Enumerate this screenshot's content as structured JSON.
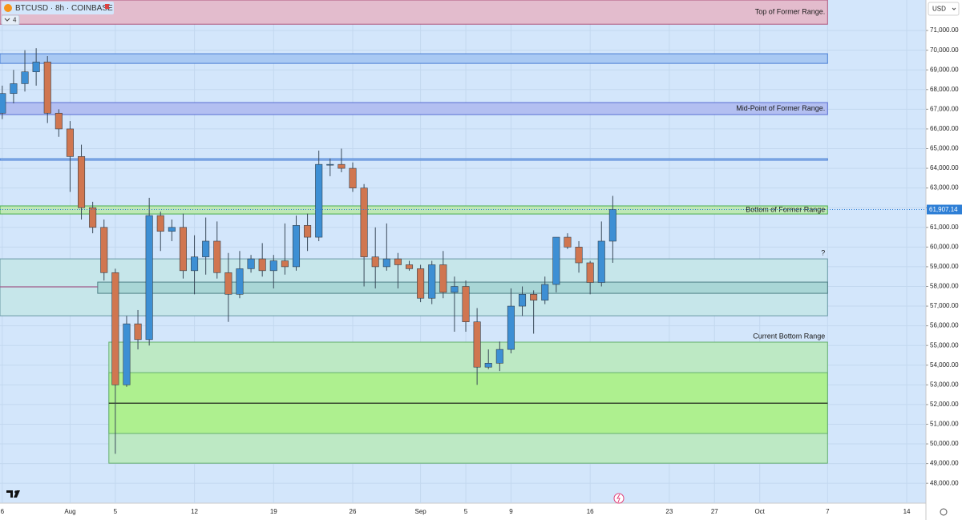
{
  "chart_data": {
    "type": "candlestick",
    "symbol": "BTCUSD · 8h · COINBASE",
    "indicator_count": "4",
    "currency": "USD",
    "x": [
      0,
      1,
      2,
      3,
      4,
      5,
      6,
      7,
      8,
      9,
      10,
      11,
      12,
      13,
      14,
      15,
      16,
      17,
      18,
      19,
      20,
      21,
      22,
      23,
      24,
      25,
      26,
      27,
      28,
      29,
      30,
      31,
      32,
      33,
      34,
      35,
      36,
      37,
      38,
      39,
      40,
      41,
      42,
      43,
      44,
      45,
      46,
      47,
      48,
      49,
      50,
      51,
      52,
      53,
      54
    ],
    "open": [
      66800,
      67800,
      68300,
      68900,
      69400,
      66800,
      66000,
      64600,
      62000,
      61000,
      58700,
      53000,
      56100,
      55300,
      61600,
      60800,
      61000,
      58800,
      59500,
      60300,
      58700,
      57600,
      58900,
      59400,
      58800,
      59300,
      59000,
      61100,
      60500,
      64200,
      64200,
      64000,
      63000,
      59500,
      59000,
      59400,
      59100,
      58900,
      57400,
      59100,
      57700,
      58000,
      56200,
      53900,
      54100,
      54800,
      57000,
      57600,
      57300,
      58100,
      60500,
      60000,
      59200,
      58200,
      60300
    ],
    "high": [
      68200,
      69000,
      70000,
      70100,
      69700,
      67000,
      66400,
      65200,
      62300,
      61400,
      58900,
      56500,
      56800,
      62500,
      61800,
      61400,
      61700,
      60600,
      61500,
      61300,
      59700,
      59800,
      59600,
      60200,
      59600,
      61200,
      61600,
      61700,
      64900,
      64500,
      65000,
      64300,
      63200,
      61000,
      61200,
      59700,
      59300,
      59100,
      59300,
      59800,
      58500,
      58300,
      56900,
      54800,
      55200,
      57900,
      58000,
      57800,
      58500,
      60500,
      60700,
      60300,
      59300,
      61300,
      62600
    ],
    "low": [
      66500,
      67300,
      67900,
      68200,
      66300,
      65600,
      62800,
      61400,
      60700,
      58300,
      49500,
      52900,
      54800,
      55000,
      59800,
      60300,
      58400,
      57600,
      58600,
      58400,
      56200,
      57400,
      58700,
      58500,
      57900,
      58600,
      58800,
      59800,
      60300,
      63600,
      63800,
      62800,
      58000,
      57900,
      58800,
      57900,
      58800,
      57200,
      57100,
      57400,
      55700,
      55700,
      53000,
      53800,
      53700,
      54600,
      56500,
      55600,
      57100,
      57700,
      59900,
      58700,
      57600,
      58000,
      59200
    ],
    "close": [
      67800,
      68300,
      68900,
      69400,
      66800,
      66000,
      64600,
      62000,
      61000,
      58700,
      53000,
      56100,
      55300,
      61600,
      60800,
      61000,
      58800,
      59500,
      60300,
      58700,
      57600,
      58900,
      59400,
      58800,
      59300,
      59000,
      61100,
      60500,
      64200,
      64200,
      64000,
      63000,
      59500,
      59000,
      59400,
      59100,
      58900,
      57400,
      59100,
      57700,
      58000,
      56200,
      53900,
      54100,
      54800,
      57000,
      57600,
      57300,
      58100,
      60500,
      60000,
      59200,
      58200,
      60300,
      61907.14
    ],
    "up_color": "#3d8fd4",
    "down_color": "#d07650",
    "xlim": [
      -0.2,
      81.7
    ],
    "xticks": [
      {
        "value": 0,
        "label": "6"
      },
      {
        "value": 6,
        "label": "Aug"
      },
      {
        "value": 10,
        "label": "5"
      },
      {
        "value": 17,
        "label": "12"
      },
      {
        "value": 24,
        "label": "19"
      },
      {
        "value": 31,
        "label": "26"
      },
      {
        "value": 37,
        "label": "Sep"
      },
      {
        "value": 41,
        "label": "5"
      },
      {
        "value": 45,
        "label": "9"
      },
      {
        "value": 52,
        "label": "16"
      },
      {
        "value": 59,
        "label": "23"
      },
      {
        "value": 63,
        "label": "27"
      },
      {
        "value": 67,
        "label": "Oct"
      },
      {
        "value": 73,
        "label": "7"
      },
      {
        "value": 80,
        "label": "14"
      }
    ],
    "ylim": [
      46990,
      72550
    ],
    "yticks": [
      {
        "value": 48000,
        "label": "48,000.00"
      },
      {
        "value": 49000,
        "label": "49,000.00"
      },
      {
        "value": 50000,
        "label": "50,000.00"
      },
      {
        "value": 51000,
        "label": "51,000.00"
      },
      {
        "value": 52000,
        "label": "52,000.00"
      },
      {
        "value": 53000,
        "label": "53,000.00"
      },
      {
        "value": 54000,
        "label": "54,000.00"
      },
      {
        "value": 55000,
        "label": "55,000.00"
      },
      {
        "value": 56000,
        "label": "56,000.00"
      },
      {
        "value": 57000,
        "label": "57,000.00"
      },
      {
        "value": 58000,
        "label": "58,000.00"
      },
      {
        "value": 59000,
        "label": "59,000.00"
      },
      {
        "value": 60000,
        "label": "60,000.00"
      },
      {
        "value": 61000,
        "label": "61,000.00"
      },
      {
        "value": 62000,
        "label": "62,000.00"
      },
      {
        "value": 63000,
        "label": "63,000.00"
      },
      {
        "value": 64000,
        "label": "64,000.00"
      },
      {
        "value": 65000,
        "label": "65,000.00"
      },
      {
        "value": 66000,
        "label": "66,000.00"
      },
      {
        "value": 67000,
        "label": "67,000.00"
      },
      {
        "value": 68000,
        "label": "68,000.00"
      },
      {
        "value": 69000,
        "label": "69,000.00"
      },
      {
        "value": 70000,
        "label": "70,000.00"
      },
      {
        "value": 71000,
        "label": "71,000.00"
      }
    ],
    "grid": true,
    "last_price": {
      "value": 61907.14,
      "label": "61,907.14"
    },
    "zones": [
      {
        "top": 72550,
        "bottom": 71320,
        "x_start": -0.2,
        "x_end": 73,
        "fill": "#e3bccd",
        "stroke": "#b0587e",
        "label": "Top of Former Range."
      },
      {
        "top": 69820,
        "bottom": 69330,
        "x_start": -0.2,
        "x_end": 73,
        "fill": "#a9c9f3",
        "stroke": "#4a7fd4"
      },
      {
        "top": 67340,
        "bottom": 66730,
        "x_start": -0.2,
        "x_end": 73,
        "fill": "#b3bff1",
        "stroke": "#5a6fd4",
        "label": "Mid-Point of Former Range."
      },
      {
        "top": 64490,
        "bottom": 64410,
        "x_start": -0.2,
        "x_end": 73,
        "fill": "#a9c9f3",
        "stroke": "#4a7fd4"
      },
      {
        "top": 62090,
        "bottom": 61680,
        "x_start": -0.2,
        "x_end": 73,
        "fill": "#bfe8b6",
        "stroke": "#4caf50",
        "label": "Bottom of Former Range"
      },
      {
        "top": 59400,
        "bottom": 56510,
        "x_start": -0.2,
        "x_end": 73,
        "fill": "#c6e6ea",
        "stroke": "#6a9aa6",
        "label": "?"
      },
      {
        "top": 58220,
        "bottom": 57650,
        "x_start": 8.44,
        "x_end": 73,
        "fill": "#a9d6d6",
        "stroke": "#4e7f86"
      },
      {
        "top": 55170,
        "bottom": 49020,
        "x_start": 9.43,
        "x_end": 73,
        "fill": "#bde9c4",
        "stroke": "#66b070",
        "label": "Current Bottom Range"
      },
      {
        "top": 53620,
        "bottom": 50530,
        "x_start": 9.43,
        "x_end": 73,
        "fill": "#aef08f",
        "stroke": "#66b070"
      }
    ],
    "lines": [
      {
        "value": 52070,
        "x_start": 9.43,
        "x_end": 73,
        "color": "#111111"
      },
      {
        "value": 57980,
        "x_start": -0.2,
        "x_end": 8.44,
        "color": "#a05a8a"
      }
    ]
  }
}
